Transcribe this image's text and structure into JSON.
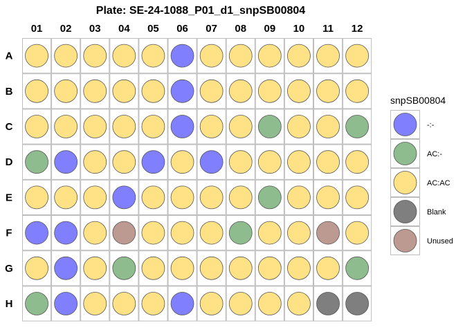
{
  "chart_data": {
    "type": "heatmap",
    "title": "Plate: SE-24-1088_P01_d1_snpSB00804",
    "columns": [
      "01",
      "02",
      "03",
      "04",
      "05",
      "06",
      "07",
      "08",
      "09",
      "10",
      "11",
      "12"
    ],
    "rows": [
      "A",
      "B",
      "C",
      "D",
      "E",
      "F",
      "G",
      "H"
    ],
    "legend_title": "snpSB00804",
    "legend_placement": "right",
    "categories": [
      {
        "key": "mm",
        "label": "-:-",
        "color": "#8080FF"
      },
      {
        "key": "ac",
        "label": "AC:-",
        "color": "#8FBC8F"
      },
      {
        "key": "acac",
        "label": "AC:AC",
        "color": "#FFE285"
      },
      {
        "key": "blank",
        "label": "Blank",
        "color": "#7F7F7F"
      },
      {
        "key": "unused",
        "label": "Unused",
        "color": "#BC9A92"
      }
    ],
    "wells": [
      [
        "acac",
        "acac",
        "acac",
        "acac",
        "acac",
        "mm",
        "acac",
        "acac",
        "acac",
        "acac",
        "acac",
        "acac"
      ],
      [
        "acac",
        "acac",
        "acac",
        "acac",
        "acac",
        "mm",
        "acac",
        "acac",
        "acac",
        "acac",
        "acac",
        "acac"
      ],
      [
        "acac",
        "acac",
        "acac",
        "acac",
        "acac",
        "mm",
        "acac",
        "acac",
        "ac",
        "acac",
        "acac",
        "ac"
      ],
      [
        "ac",
        "mm",
        "acac",
        "acac",
        "mm",
        "acac",
        "mm",
        "acac",
        "acac",
        "acac",
        "acac",
        "acac"
      ],
      [
        "acac",
        "acac",
        "acac",
        "mm",
        "acac",
        "acac",
        "acac",
        "acac",
        "ac",
        "acac",
        "acac",
        "acac"
      ],
      [
        "mm",
        "mm",
        "acac",
        "unused",
        "acac",
        "acac",
        "acac",
        "ac",
        "acac",
        "acac",
        "unused",
        "acac"
      ],
      [
        "acac",
        "mm",
        "acac",
        "ac",
        "acac",
        "acac",
        "acac",
        "acac",
        "acac",
        "acac",
        "acac",
        "ac"
      ],
      [
        "ac",
        "mm",
        "acac",
        "acac",
        "acac",
        "mm",
        "acac",
        "acac",
        "acac",
        "acac",
        "blank",
        "blank"
      ]
    ]
  }
}
